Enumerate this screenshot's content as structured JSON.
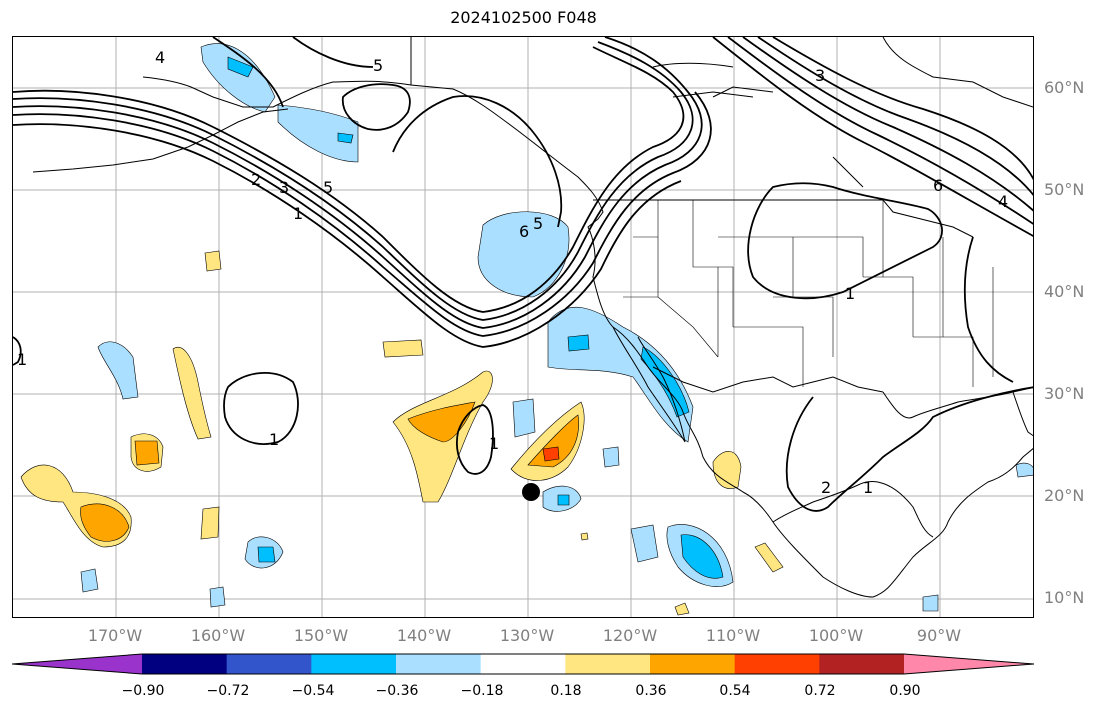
{
  "title": "2024102500 F048",
  "map": {
    "lat_labels": [
      "60°N",
      "50°N",
      "40°N",
      "30°N",
      "20°N",
      "10°N"
    ],
    "lon_labels": [
      "170°W",
      "160°W",
      "150°W",
      "140°W",
      "130°W",
      "120°W",
      "110°W",
      "100°W",
      "90°W"
    ],
    "gridlines": true,
    "marker": "black-circle"
  },
  "colorbar": {
    "colors": [
      "#9933cc",
      "#000080",
      "#3355cc",
      "#00bfff",
      "#aadfff",
      "#ffffff",
      "#ffe680",
      "#ffa500",
      "#ff4000",
      "#b22222",
      "#ff88aa"
    ],
    "tick_labels": [
      "−0.90",
      "−0.72",
      "−0.54",
      "−0.36",
      "−0.18",
      "0.18",
      "0.36",
      "0.54",
      "0.72",
      "0.90"
    ]
  },
  "contour_labels": {
    "gulf_alaska": [
      "2",
      "3",
      "5",
      "1"
    ],
    "north_jet": [
      "5"
    ],
    "west_coast": [
      "6",
      "5"
    ],
    "central_pacific": [
      "1"
    ],
    "subtropical": [
      "1"
    ],
    "great_plains": [
      "1"
    ],
    "canada_east": [
      "3",
      "6",
      "4"
    ],
    "mexico": [
      "2",
      "1"
    ],
    "aleutian": [
      "4"
    ],
    "far_west": [
      "1"
    ]
  }
}
